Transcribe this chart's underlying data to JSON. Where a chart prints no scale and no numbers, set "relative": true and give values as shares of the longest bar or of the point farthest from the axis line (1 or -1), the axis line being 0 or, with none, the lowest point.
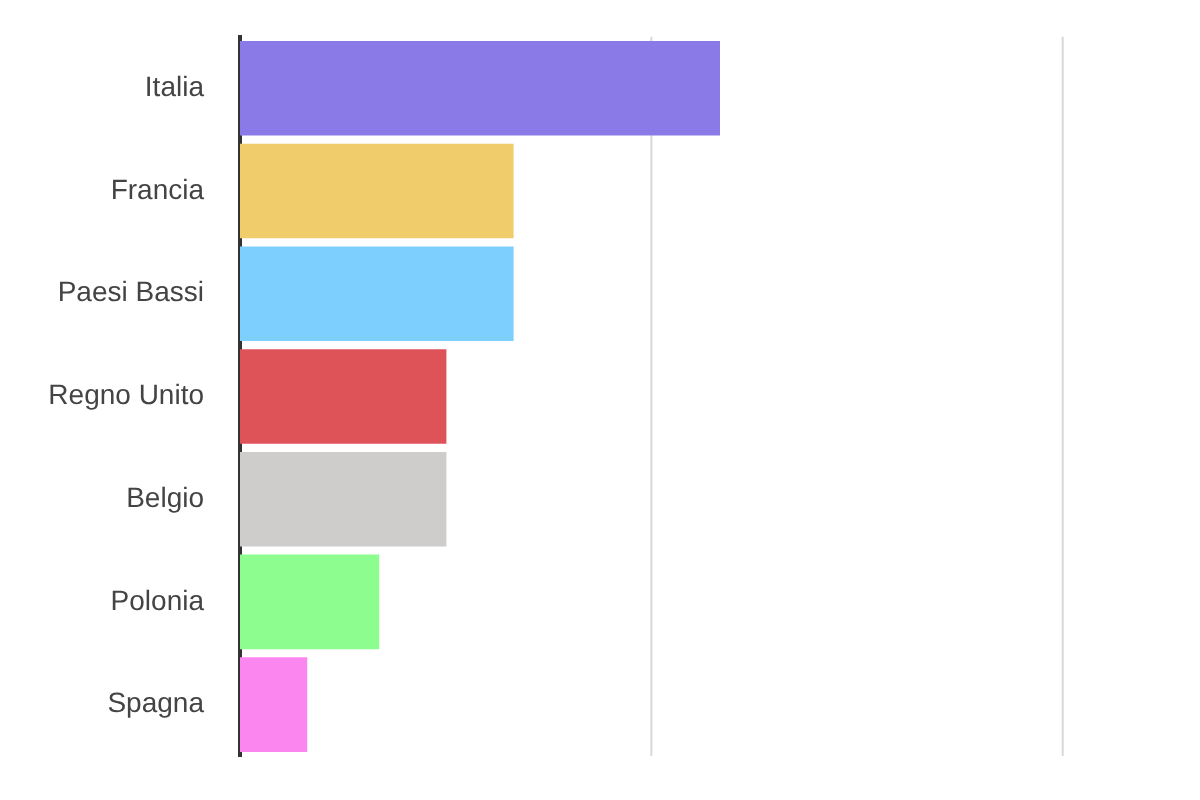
{
  "chart_data": {
    "type": "bar",
    "orientation": "horizontal",
    "relative": true,
    "ref_lines": [
      {
        "axis": "x",
        "value": 0.857,
        "color": "#d8d8d8"
      },
      {
        "axis": "x",
        "value": 1.714,
        "color": "#d8d8d8"
      }
    ],
    "categories": [
      "Italia",
      "Francia",
      "Paesi Bassi",
      "Regno Unito",
      "Belgio",
      "Polonia",
      "Spagna"
    ],
    "values": [
      1,
      0.57,
      0.57,
      0.43,
      0.43,
      0.29,
      0.14
    ],
    "colors": [
      "#8a7ae8",
      "#f0cd6a",
      "#7dd0fd",
      "#de5358",
      "#cfcccc",
      "#8efd8f",
      "#fb86ef"
    ]
  }
}
